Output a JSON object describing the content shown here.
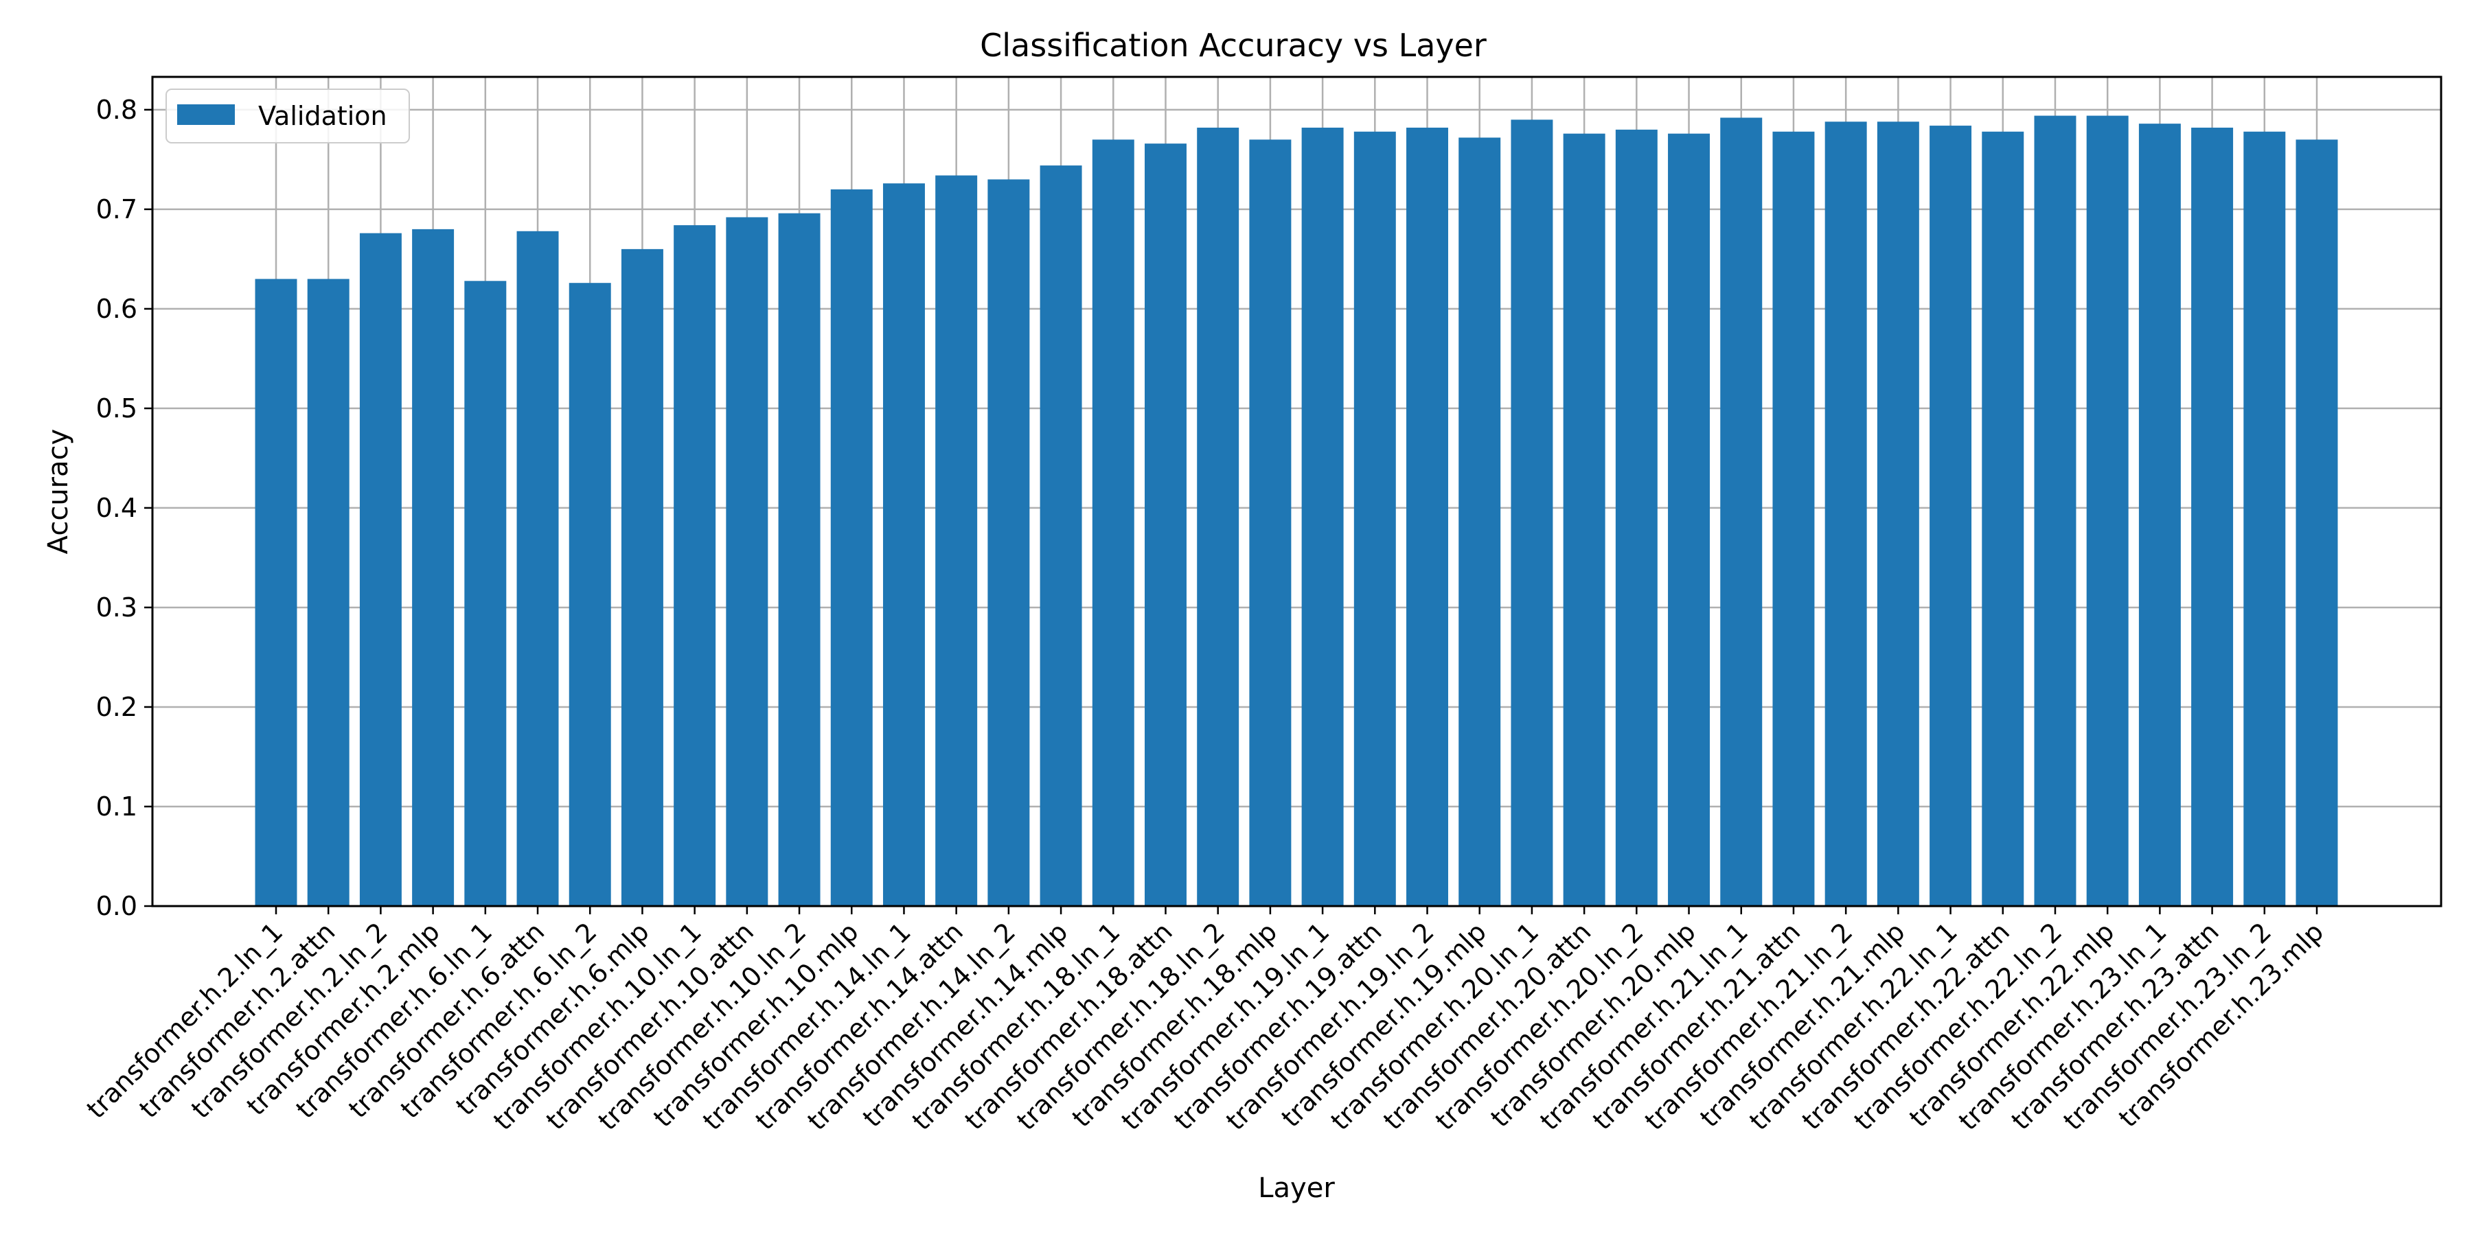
{
  "chart_data": {
    "type": "bar",
    "title": "Classification Accuracy vs Layer",
    "xlabel": "Layer",
    "ylabel": "Accuracy",
    "ylim": [
      0,
      0.833
    ],
    "yticks": [
      "0.0",
      "0.1",
      "0.2",
      "0.3",
      "0.4",
      "0.5",
      "0.6",
      "0.7",
      "0.8"
    ],
    "grid": true,
    "legend_position": "top-left",
    "categories": [
      "transformer.h.2.ln_1",
      "transformer.h.2.attn",
      "transformer.h.2.ln_2",
      "transformer.h.2.mlp",
      "transformer.h.6.ln_1",
      "transformer.h.6.attn",
      "transformer.h.6.ln_2",
      "transformer.h.6.mlp",
      "transformer.h.10.ln_1",
      "transformer.h.10.attn",
      "transformer.h.10.ln_2",
      "transformer.h.10.mlp",
      "transformer.h.14.ln_1",
      "transformer.h.14.attn",
      "transformer.h.14.ln_2",
      "transformer.h.14.mlp",
      "transformer.h.18.ln_1",
      "transformer.h.18.attn",
      "transformer.h.18.ln_2",
      "transformer.h.18.mlp",
      "transformer.h.19.ln_1",
      "transformer.h.19.attn",
      "transformer.h.19.ln_2",
      "transformer.h.19.mlp",
      "transformer.h.20.ln_1",
      "transformer.h.20.attn",
      "transformer.h.20.ln_2",
      "transformer.h.20.mlp",
      "transformer.h.21.ln_1",
      "transformer.h.21.attn",
      "transformer.h.21.ln_2",
      "transformer.h.21.mlp",
      "transformer.h.22.ln_1",
      "transformer.h.22.attn",
      "transformer.h.22.ln_2",
      "transformer.h.22.mlp",
      "transformer.h.23.ln_1",
      "transformer.h.23.attn",
      "transformer.h.23.ln_2",
      "transformer.h.23.mlp"
    ],
    "series": [
      {
        "name": "Validation",
        "color": "#1f77b4",
        "values": [
          0.63,
          0.63,
          0.676,
          0.68,
          0.628,
          0.678,
          0.626,
          0.66,
          0.684,
          0.692,
          0.696,
          0.72,
          0.726,
          0.734,
          0.73,
          0.744,
          0.77,
          0.766,
          0.782,
          0.77,
          0.782,
          0.778,
          0.782,
          0.772,
          0.79,
          0.776,
          0.78,
          0.776,
          0.792,
          0.778,
          0.788,
          0.788,
          0.784,
          0.778,
          0.794,
          0.794,
          0.786,
          0.782,
          0.778,
          0.77
        ]
      }
    ]
  }
}
